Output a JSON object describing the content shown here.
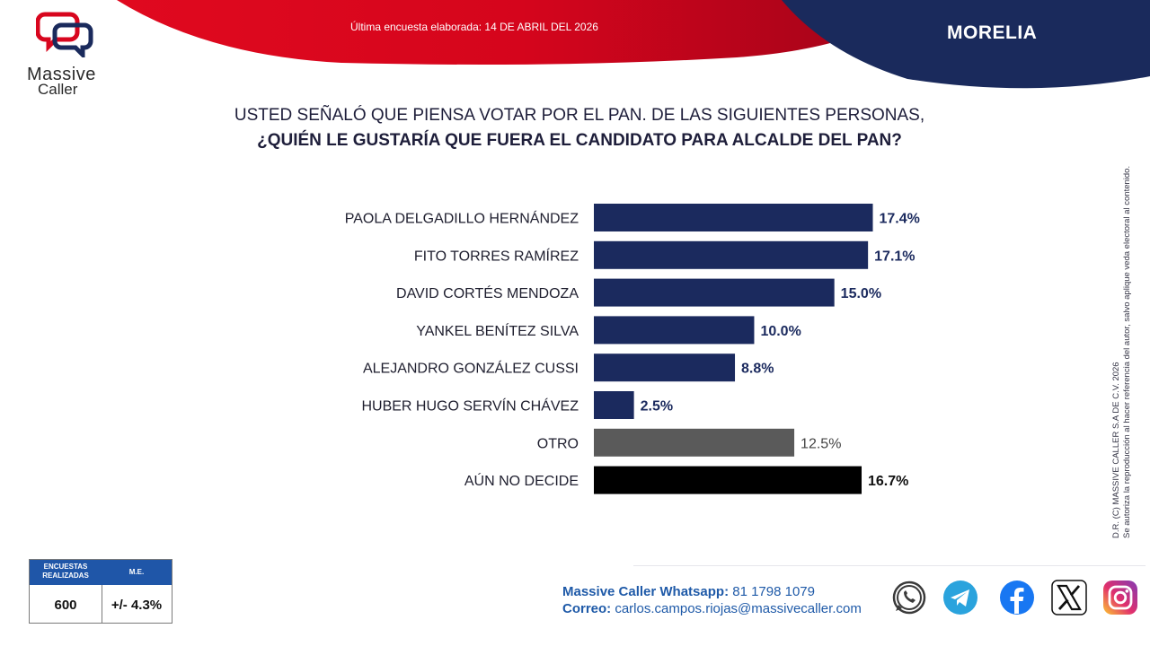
{
  "brand": {
    "line1": "Massive",
    "line2": "Caller"
  },
  "header": {
    "survey_date": "Última encuesta elaborada: 14 DE ABRIL DEL 2026",
    "city": "MORELIA"
  },
  "question": {
    "line1": "USTED SEÑALÓ QUE PIENSA VOTAR POR EL PAN. DE LAS SIGUIENTES PERSONAS,",
    "line2": "¿QUIÉN LE GUSTARÍA QUE FUERA EL CANDIDATO PARA ALCALDE DEL PAN?"
  },
  "legal": {
    "line1": "D.R. (C) MASSIVE CALLER S.A DE C.V. 2026",
    "line2": "Se autoriza la reproducción al hacer referencia del autor, salvo aplique veda electoral al contenido."
  },
  "stats": {
    "header_surveys": "ENCUESTAS REALIZADAS",
    "header_me": "M.E.",
    "surveys": "600",
    "me": "+/- 4.3%"
  },
  "contact": {
    "whatsapp_label": "Massive Caller Whatsapp:",
    "whatsapp_number": "81 1798 1079",
    "email_label": "Correo:",
    "email": "carlos.campos.riojas@massivecaller.com"
  },
  "social_icons": [
    "whatsapp-icon",
    "telegram-icon",
    "facebook-icon",
    "x-icon",
    "instagram-icon"
  ],
  "colors": {
    "red": "#d8061e",
    "navy": "#1a2a5c",
    "bar_candidate": "#1b2a5e",
    "bar_other": "#5a5a5a",
    "bar_undecided": "#000000"
  },
  "chart_data": {
    "type": "bar",
    "orientation": "horizontal",
    "categories": [
      "PAOLA DELGADILLO HERNÁNDEZ",
      "FITO TORRES RAMÍREZ",
      "DAVID CORTÉS MENDOZA",
      "YANKEL BENÍTEZ SILVA",
      "ALEJANDRO GONZÁLEZ CUSSI",
      "HUBER HUGO SERVÍN CHÁVEZ",
      "OTRO",
      "AÚN NO DECIDE"
    ],
    "values": [
      17.4,
      17.1,
      15.0,
      10.0,
      8.8,
      2.5,
      12.5,
      16.7
    ],
    "labels": [
      "17.4%",
      "17.1%",
      "15.0%",
      "10.0%",
      "8.8%",
      "2.5%",
      "12.5%",
      "16.7%"
    ],
    "bar_colors": [
      "#1b2a5e",
      "#1b2a5e",
      "#1b2a5e",
      "#1b2a5e",
      "#1b2a5e",
      "#1b2a5e",
      "#5a5a5a",
      "#000000"
    ],
    "label_colors": [
      "#1b2a5e",
      "#1b2a5e",
      "#1b2a5e",
      "#1b2a5e",
      "#1b2a5e",
      "#1b2a5e",
      "#444444",
      "#111111"
    ],
    "unit": "%",
    "xlim": [
      0,
      20
    ],
    "grid": false,
    "legend": "none"
  }
}
